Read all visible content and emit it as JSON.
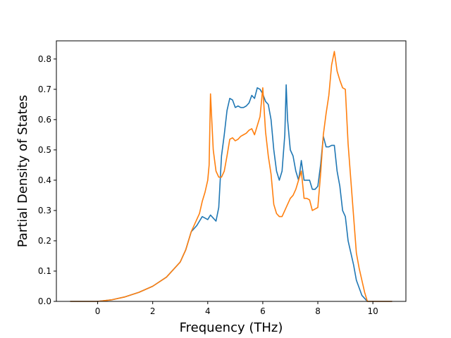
{
  "chart_data": {
    "type": "line",
    "title": "",
    "xlabel": "Frequency (THz)",
    "ylabel": "Partial Density of States",
    "xlim": [
      -1.5,
      11.2
    ],
    "ylim": [
      0.0,
      0.86
    ],
    "xticks": [
      0,
      2,
      4,
      6,
      8,
      10
    ],
    "yticks": [
      0.0,
      0.1,
      0.2,
      0.3,
      0.4,
      0.5,
      0.6,
      0.7,
      0.8
    ],
    "grid": false,
    "legend": "none",
    "series": [
      {
        "color": "#1f77b4",
        "x": [
          -1.0,
          0.0,
          0.5,
          1.0,
          1.5,
          2.0,
          2.5,
          3.0,
          3.2,
          3.4,
          3.5,
          3.6,
          3.7,
          3.8,
          3.9,
          4.0,
          4.1,
          4.2,
          4.3,
          4.4,
          4.5,
          4.6,
          4.7,
          4.8,
          4.9,
          5.0,
          5.1,
          5.2,
          5.3,
          5.4,
          5.5,
          5.6,
          5.7,
          5.8,
          5.9,
          6.0,
          6.1,
          6.2,
          6.3,
          6.4,
          6.5,
          6.6,
          6.7,
          6.8,
          6.85,
          6.9,
          7.0,
          7.1,
          7.2,
          7.3,
          7.35,
          7.4,
          7.5,
          7.6,
          7.7,
          7.8,
          7.9,
          8.0,
          8.1,
          8.2,
          8.3,
          8.4,
          8.5,
          8.6,
          8.7,
          8.8,
          8.9,
          9.0,
          9.1,
          9.2,
          9.3,
          9.4,
          9.5,
          9.6,
          9.7,
          9.8,
          10.0,
          10.7
        ],
        "y": [
          0.0,
          0.0,
          0.005,
          0.015,
          0.03,
          0.05,
          0.08,
          0.13,
          0.17,
          0.23,
          0.24,
          0.25,
          0.265,
          0.28,
          0.275,
          0.27,
          0.285,
          0.275,
          0.265,
          0.31,
          0.48,
          0.55,
          0.63,
          0.67,
          0.665,
          0.64,
          0.645,
          0.64,
          0.64,
          0.645,
          0.655,
          0.68,
          0.67,
          0.705,
          0.7,
          0.685,
          0.66,
          0.65,
          0.6,
          0.5,
          0.43,
          0.4,
          0.43,
          0.55,
          0.715,
          0.6,
          0.5,
          0.48,
          0.43,
          0.4,
          0.43,
          0.465,
          0.4,
          0.4,
          0.4,
          0.37,
          0.37,
          0.38,
          0.45,
          0.545,
          0.51,
          0.51,
          0.515,
          0.515,
          0.43,
          0.38,
          0.3,
          0.28,
          0.2,
          0.16,
          0.12,
          0.07,
          0.045,
          0.02,
          0.01,
          0.0,
          0.0,
          0.0
        ]
      },
      {
        "color": "#ff7f0e",
        "x": [
          -1.0,
          0.0,
          0.5,
          1.0,
          1.5,
          2.0,
          2.5,
          3.0,
          3.2,
          3.4,
          3.5,
          3.6,
          3.7,
          3.8,
          3.9,
          3.95,
          4.0,
          4.05,
          4.1,
          4.2,
          4.3,
          4.4,
          4.5,
          4.6,
          4.7,
          4.8,
          4.9,
          5.0,
          5.1,
          5.2,
          5.3,
          5.4,
          5.5,
          5.6,
          5.7,
          5.8,
          5.9,
          6.0,
          6.1,
          6.2,
          6.3,
          6.4,
          6.5,
          6.6,
          6.7,
          6.8,
          6.9,
          7.0,
          7.1,
          7.2,
          7.3,
          7.4,
          7.5,
          7.6,
          7.7,
          7.8,
          7.9,
          8.0,
          8.1,
          8.2,
          8.3,
          8.4,
          8.5,
          8.6,
          8.7,
          8.8,
          8.9,
          9.0,
          9.1,
          9.2,
          9.3,
          9.4,
          9.5,
          9.6,
          9.7,
          9.8,
          10.0,
          10.7
        ],
        "y": [
          0.0,
          0.0,
          0.005,
          0.015,
          0.03,
          0.05,
          0.08,
          0.13,
          0.17,
          0.23,
          0.25,
          0.27,
          0.29,
          0.33,
          0.36,
          0.38,
          0.4,
          0.45,
          0.685,
          0.5,
          0.43,
          0.41,
          0.41,
          0.43,
          0.48,
          0.535,
          0.54,
          0.53,
          0.535,
          0.545,
          0.55,
          0.555,
          0.565,
          0.57,
          0.55,
          0.58,
          0.61,
          0.705,
          0.56,
          0.48,
          0.42,
          0.32,
          0.29,
          0.28,
          0.28,
          0.3,
          0.32,
          0.34,
          0.35,
          0.37,
          0.4,
          0.43,
          0.34,
          0.34,
          0.335,
          0.3,
          0.305,
          0.31,
          0.42,
          0.55,
          0.62,
          0.68,
          0.78,
          0.825,
          0.76,
          0.73,
          0.705,
          0.7,
          0.52,
          0.4,
          0.28,
          0.16,
          0.11,
          0.07,
          0.03,
          0.0,
          0.0,
          0.0
        ]
      }
    ]
  }
}
